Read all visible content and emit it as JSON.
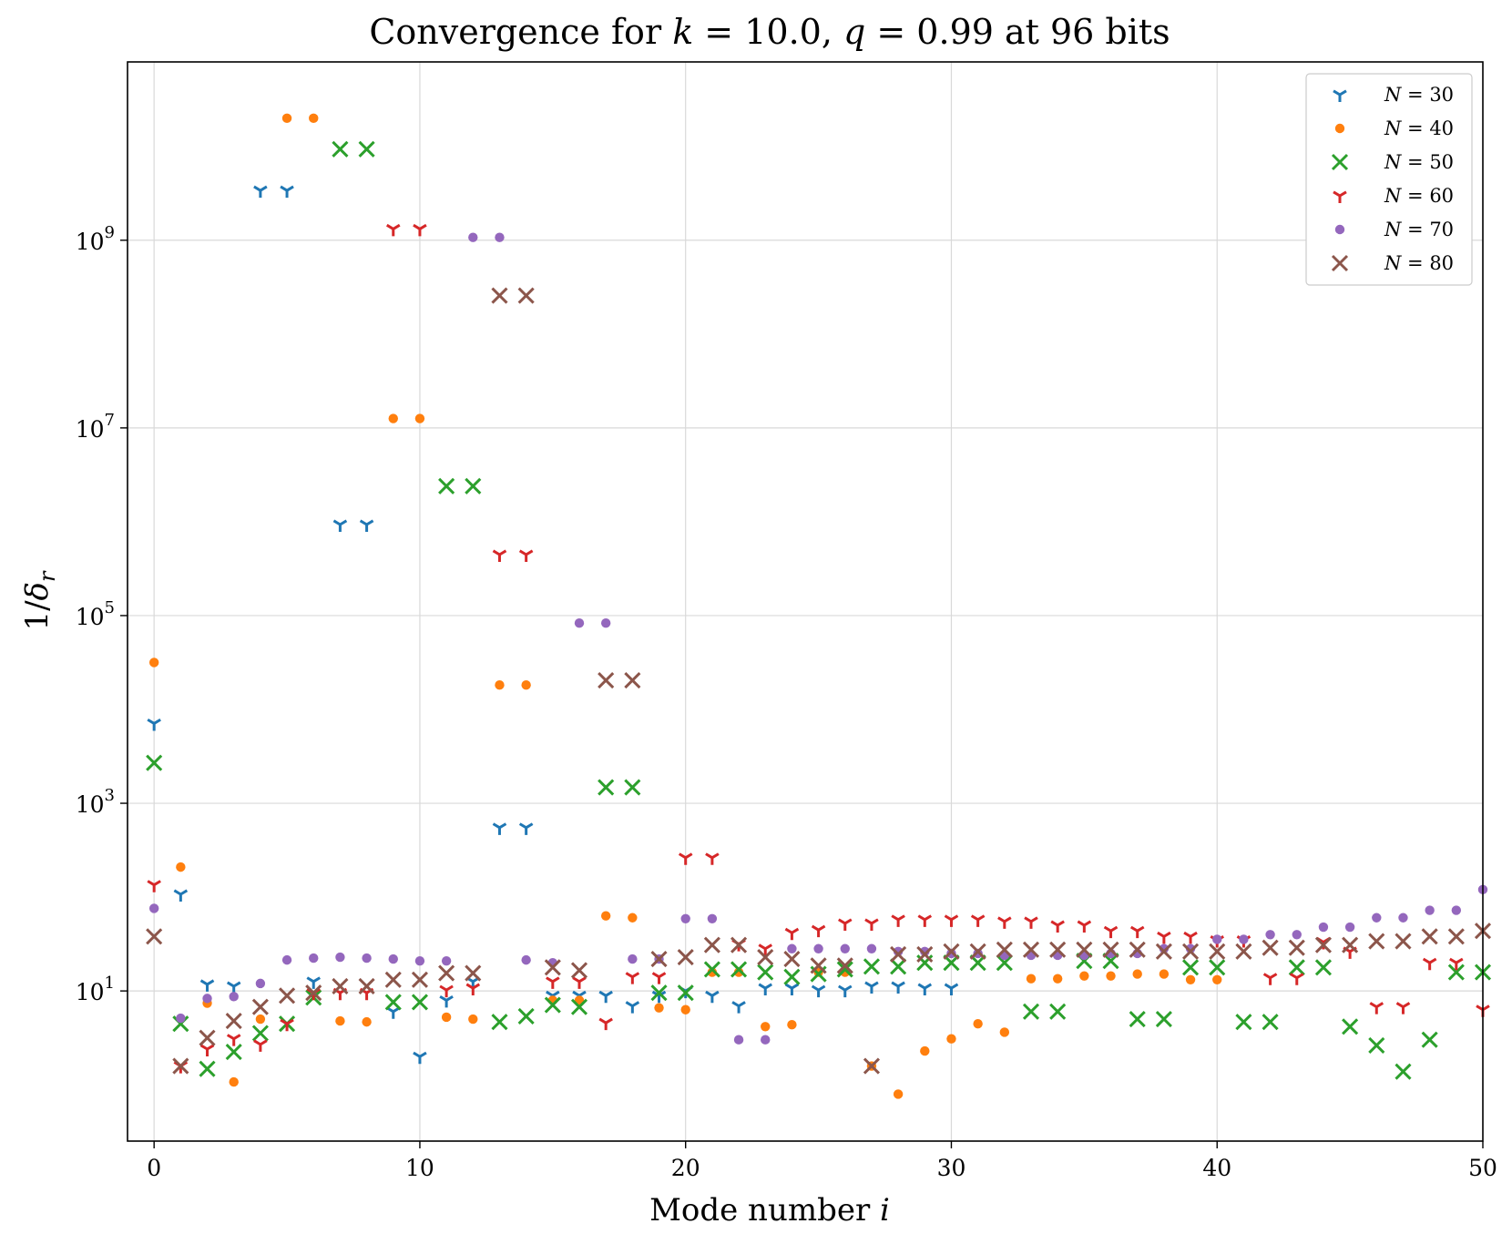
{
  "chart_data": {
    "type": "scatter",
    "title": "Convergence for k = 10.0, q = 0.99 at 96 bits",
    "xlabel": "Mode number i",
    "ylabel": "1/δ_r",
    "xlim": [
      -1,
      50
    ],
    "ylim_log10": [
      -0.6,
      10.9
    ],
    "yscale": "log",
    "x_ticks": [
      0,
      10,
      20,
      30,
      40,
      50
    ],
    "x_tick_labels": [
      "0",
      "10",
      "20",
      "30",
      "40",
      "50"
    ],
    "y_ticks_log10": [
      1,
      3,
      5,
      7,
      9
    ],
    "y_tick_labels": [
      {
        "base": "10",
        "exp": "1"
      },
      {
        "base": "10",
        "exp": "3"
      },
      {
        "base": "10",
        "exp": "5"
      },
      {
        "base": "10",
        "exp": "7"
      },
      {
        "base": "10",
        "exp": "9"
      }
    ],
    "grid": true,
    "legend_position": "top-right",
    "series": [
      {
        "name": "N = 30",
        "label_var": "N",
        "label_val": "30",
        "color": "#1f77b4",
        "marker": "tri-down",
        "points": [
          [
            0,
            3.85
          ],
          [
            1,
            2.03
          ],
          [
            2,
            1.07
          ],
          [
            3,
            1.05
          ],
          [
            4,
            9.53
          ],
          [
            5,
            9.53
          ],
          [
            6,
            1.1
          ],
          [
            7,
            5.97
          ],
          [
            8,
            5.97
          ],
          [
            9,
            0.78
          ],
          [
            10,
            0.3
          ],
          [
            11,
            0.9
          ],
          [
            12,
            1.1
          ],
          [
            13,
            2.74
          ],
          [
            14,
            2.74
          ],
          [
            15,
            0.95
          ],
          [
            16,
            0.95
          ],
          [
            17,
            0.95
          ],
          [
            18,
            0.84
          ],
          [
            19,
            0.95
          ],
          [
            20,
            1.0
          ],
          [
            21,
            0.95
          ],
          [
            22,
            0.84
          ],
          [
            23,
            1.03
          ],
          [
            24,
            1.03
          ],
          [
            25,
            1.01
          ],
          [
            26,
            1.01
          ],
          [
            27,
            1.05
          ],
          [
            28,
            1.05
          ],
          [
            29,
            1.03
          ],
          [
            30,
            1.03
          ]
        ]
      },
      {
        "name": "N = 40",
        "label_var": "N",
        "label_val": "40",
        "color": "#ff7f0e",
        "marker": "dot",
        "points": [
          [
            0,
            4.5
          ],
          [
            1,
            2.32
          ],
          [
            2,
            0.87
          ],
          [
            3,
            0.03
          ],
          [
            4,
            0.7
          ],
          [
            5,
            10.3
          ],
          [
            6,
            10.3
          ],
          [
            7,
            0.68
          ],
          [
            8,
            0.67
          ],
          [
            9,
            7.1
          ],
          [
            10,
            7.1
          ],
          [
            11,
            0.72
          ],
          [
            12,
            0.7
          ],
          [
            13,
            4.26
          ],
          [
            14,
            4.26
          ],
          [
            15,
            0.9
          ],
          [
            16,
            0.9
          ],
          [
            17,
            1.8
          ],
          [
            18,
            1.78
          ],
          [
            19,
            0.82
          ],
          [
            20,
            0.8
          ],
          [
            21,
            1.2
          ],
          [
            22,
            1.2
          ],
          [
            23,
            0.62
          ],
          [
            24,
            0.64
          ],
          [
            25,
            1.2
          ],
          [
            26,
            1.2
          ],
          [
            27,
            0.2
          ],
          [
            28,
            -0.1
          ],
          [
            29,
            0.36
          ],
          [
            30,
            0.49
          ],
          [
            31,
            0.65
          ],
          [
            32,
            0.56
          ],
          [
            33,
            1.13
          ],
          [
            34,
            1.13
          ],
          [
            35,
            1.16
          ],
          [
            36,
            1.16
          ],
          [
            37,
            1.18
          ],
          [
            38,
            1.18
          ],
          [
            39,
            1.12
          ],
          [
            40,
            1.12
          ]
        ]
      },
      {
        "name": "N = 50",
        "label_var": "N",
        "label_val": "50",
        "color": "#2ca02c",
        "marker": "x",
        "points": [
          [
            0,
            3.43
          ],
          [
            1,
            0.65
          ],
          [
            2,
            0.17
          ],
          [
            3,
            0.35
          ],
          [
            4,
            0.55
          ],
          [
            5,
            0.65
          ],
          [
            6,
            0.93
          ],
          [
            7,
            9.97
          ],
          [
            8,
            9.97
          ],
          [
            9,
            0.88
          ],
          [
            10,
            0.88
          ],
          [
            11,
            6.38
          ],
          [
            12,
            6.38
          ],
          [
            13,
            0.67
          ],
          [
            14,
            0.73
          ],
          [
            15,
            0.85
          ],
          [
            16,
            0.83
          ],
          [
            17,
            3.17
          ],
          [
            18,
            3.17
          ],
          [
            19,
            0.98
          ],
          [
            20,
            0.98
          ],
          [
            21,
            1.23
          ],
          [
            22,
            1.23
          ],
          [
            23,
            1.2
          ],
          [
            24,
            1.15
          ],
          [
            25,
            1.18
          ],
          [
            26,
            1.23
          ],
          [
            27,
            1.26
          ],
          [
            28,
            1.26
          ],
          [
            29,
            1.3
          ],
          [
            30,
            1.3
          ],
          [
            31,
            1.3
          ],
          [
            32,
            1.3
          ],
          [
            33,
            0.78
          ],
          [
            34,
            0.78
          ],
          [
            35,
            1.32
          ],
          [
            36,
            1.32
          ],
          [
            37,
            0.7
          ],
          [
            38,
            0.7
          ],
          [
            39,
            1.25
          ],
          [
            40,
            1.25
          ],
          [
            41,
            0.67
          ],
          [
            42,
            0.67
          ],
          [
            43,
            1.25
          ],
          [
            44,
            1.25
          ],
          [
            45,
            0.62
          ],
          [
            46,
            0.42
          ],
          [
            47,
            0.14
          ],
          [
            48,
            0.48
          ],
          [
            49,
            1.2
          ],
          [
            50,
            1.2
          ]
        ]
      },
      {
        "name": "N = 60",
        "label_var": "N",
        "label_val": "60",
        "color": "#d62728",
        "marker": "tri-down",
        "points": [
          [
            0,
            2.13
          ],
          [
            1,
            0.2
          ],
          [
            2,
            0.38
          ],
          [
            3,
            0.49
          ],
          [
            4,
            0.43
          ],
          [
            5,
            0.65
          ],
          [
            6,
            0.98
          ],
          [
            7,
            0.98
          ],
          [
            8,
            0.98
          ],
          [
            9,
            9.12
          ],
          [
            10,
            9.12
          ],
          [
            11,
            1.01
          ],
          [
            12,
            1.03
          ],
          [
            13,
            5.65
          ],
          [
            14,
            5.65
          ],
          [
            15,
            1.1
          ],
          [
            16,
            1.1
          ],
          [
            17,
            0.66
          ],
          [
            18,
            1.15
          ],
          [
            19,
            1.15
          ],
          [
            20,
            2.42
          ],
          [
            21,
            2.42
          ],
          [
            22,
            1.5
          ],
          [
            23,
            1.45
          ],
          [
            24,
            1.62
          ],
          [
            25,
            1.65
          ],
          [
            26,
            1.72
          ],
          [
            27,
            1.72
          ],
          [
            28,
            1.76
          ],
          [
            29,
            1.76
          ],
          [
            30,
            1.76
          ],
          [
            31,
            1.76
          ],
          [
            32,
            1.74
          ],
          [
            33,
            1.74
          ],
          [
            34,
            1.7
          ],
          [
            35,
            1.7
          ],
          [
            36,
            1.64
          ],
          [
            37,
            1.64
          ],
          [
            38,
            1.58
          ],
          [
            39,
            1.58
          ],
          [
            40,
            1.54
          ],
          [
            41,
            1.54
          ],
          [
            42,
            1.14
          ],
          [
            43,
            1.14
          ],
          [
            44,
            1.52
          ],
          [
            45,
            1.42
          ],
          [
            46,
            0.83
          ],
          [
            47,
            0.83
          ],
          [
            48,
            1.3
          ],
          [
            49,
            1.3
          ],
          [
            50,
            0.8
          ]
        ]
      },
      {
        "name": "N = 70",
        "label_var": "N",
        "label_val": "70",
        "color": "#9467bd",
        "marker": "dot",
        "points": [
          [
            0,
            1.88
          ],
          [
            1,
            0.71
          ],
          [
            2,
            0.92
          ],
          [
            3,
            0.94
          ],
          [
            4,
            1.08
          ],
          [
            5,
            1.33
          ],
          [
            6,
            1.35
          ],
          [
            7,
            1.36
          ],
          [
            8,
            1.35
          ],
          [
            9,
            1.34
          ],
          [
            10,
            1.32
          ],
          [
            11,
            1.32
          ],
          [
            12,
            9.03
          ],
          [
            13,
            9.03
          ],
          [
            14,
            1.33
          ],
          [
            15,
            1.3
          ],
          [
            16,
            4.92
          ],
          [
            17,
            4.92
          ],
          [
            18,
            1.34
          ],
          [
            19,
            1.34
          ],
          [
            20,
            1.77
          ],
          [
            21,
            1.77
          ],
          [
            22,
            0.48
          ],
          [
            23,
            0.48
          ],
          [
            24,
            1.45
          ],
          [
            25,
            1.45
          ],
          [
            26,
            1.45
          ],
          [
            27,
            1.45
          ],
          [
            28,
            1.42
          ],
          [
            29,
            1.42
          ],
          [
            30,
            1.4
          ],
          [
            31,
            1.4
          ],
          [
            32,
            1.38
          ],
          [
            33,
            1.38
          ],
          [
            34,
            1.38
          ],
          [
            35,
            1.38
          ],
          [
            36,
            1.4
          ],
          [
            37,
            1.4
          ],
          [
            38,
            1.45
          ],
          [
            39,
            1.45
          ],
          [
            40,
            1.55
          ],
          [
            41,
            1.55
          ],
          [
            42,
            1.6
          ],
          [
            43,
            1.6
          ],
          [
            44,
            1.68
          ],
          [
            45,
            1.68
          ],
          [
            46,
            1.78
          ],
          [
            47,
            1.78
          ],
          [
            48,
            1.86
          ],
          [
            49,
            1.86
          ],
          [
            50,
            2.08
          ]
        ]
      },
      {
        "name": "N = 80",
        "label_var": "N",
        "label_val": "80",
        "color": "#8c564b",
        "marker": "x",
        "points": [
          [
            0,
            1.58
          ],
          [
            1,
            0.2
          ],
          [
            2,
            0.5
          ],
          [
            3,
            0.68
          ],
          [
            4,
            0.83
          ],
          [
            5,
            0.95
          ],
          [
            6,
            0.98
          ],
          [
            7,
            1.05
          ],
          [
            8,
            1.05
          ],
          [
            9,
            1.12
          ],
          [
            10,
            1.12
          ],
          [
            11,
            1.19
          ],
          [
            12,
            1.19
          ],
          [
            13,
            8.41
          ],
          [
            14,
            8.41
          ],
          [
            15,
            1.25
          ],
          [
            16,
            1.22
          ],
          [
            17,
            4.31
          ],
          [
            18,
            4.31
          ],
          [
            19,
            1.34
          ],
          [
            20,
            1.36
          ],
          [
            21,
            1.49
          ],
          [
            22,
            1.49
          ],
          [
            23,
            1.36
          ],
          [
            24,
            1.34
          ],
          [
            25,
            1.27
          ],
          [
            26,
            1.27
          ],
          [
            27,
            0.2
          ],
          [
            28,
            1.39
          ],
          [
            29,
            1.39
          ],
          [
            30,
            1.42
          ],
          [
            31,
            1.42
          ],
          [
            32,
            1.44
          ],
          [
            33,
            1.44
          ],
          [
            34,
            1.44
          ],
          [
            35,
            1.44
          ],
          [
            36,
            1.44
          ],
          [
            37,
            1.44
          ],
          [
            38,
            1.42
          ],
          [
            39,
            1.42
          ],
          [
            40,
            1.42
          ],
          [
            41,
            1.42
          ],
          [
            42,
            1.46
          ],
          [
            43,
            1.46
          ],
          [
            44,
            1.49
          ],
          [
            45,
            1.49
          ],
          [
            46,
            1.53
          ],
          [
            47,
            1.53
          ],
          [
            48,
            1.58
          ],
          [
            49,
            1.58
          ],
          [
            50,
            1.64
          ]
        ]
      }
    ]
  }
}
